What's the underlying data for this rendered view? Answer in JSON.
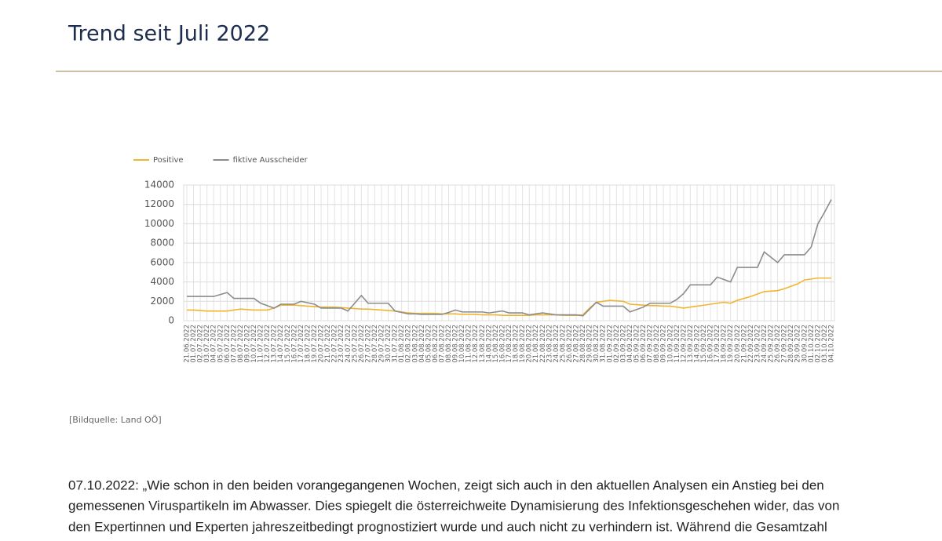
{
  "header": {
    "title": "Trend seit Juli 2022"
  },
  "chart_data": {
    "type": "line",
    "categories": [
      "21.06.2022",
      "01.07.2022",
      "02.07.2022",
      "03.07.2022",
      "04.07.2022",
      "05.07.2022",
      "06.07.2022",
      "07.07.2022",
      "08.07.2022",
      "09.07.2022",
      "10.07.2022",
      "11.07.2022",
      "12.07.2022",
      "13.07.2022",
      "14.07.2022",
      "15.07.2022",
      "16.07.2022",
      "17.07.2022",
      "18.07.2022",
      "19.07.2022",
      "20.07.2022",
      "21.07.2022",
      "22.07.2022",
      "23.07.2022",
      "24.07.2022",
      "25.07.2022",
      "26.07.2022",
      "27.07.2022",
      "28.07.2022",
      "29.07.2022",
      "30.07.2022",
      "31.07.2022",
      "01.08.2022",
      "02.08.2022",
      "03.08.2022",
      "04.08.2022",
      "05.08.2022",
      "06.08.2022",
      "07.08.2022",
      "08.08.2022",
      "09.08.2022",
      "10.08.2022",
      "11.08.2022",
      "12.08.2022",
      "13.08.2022",
      "14.08.2022",
      "15.08.2022",
      "16.08.2022",
      "17.08.2022",
      "18.08.2022",
      "19.08.2022",
      "20.08.2022",
      "21.08.2022",
      "22.08.2022",
      "23.08.2022",
      "24.08.2022",
      "25.08.2022",
      "26.08.2022",
      "27.08.2022",
      "28.08.2022",
      "29.08.2022",
      "30.08.2022",
      "31.08.2022",
      "01.09.2022",
      "02.09.2022",
      "03.09.2022",
      "04.09.2022",
      "05.09.2022",
      "06.09.2022",
      "07.09.2022",
      "08.09.2022",
      "09.09.2022",
      "10.09.2022",
      "11.09.2022",
      "12.09.2022",
      "13.09.2022",
      "14.09.2022",
      "15.09.2022",
      "16.09.2022",
      "17.09.2022",
      "18.09.2022",
      "19.09.2022",
      "20.09.2022",
      "21.09.2022",
      "22.09.2022",
      "23.09.2022",
      "24.09.2022",
      "25.09.2022",
      "26.09.2022",
      "27.09.2022",
      "28.09.2022",
      "29.09.2022",
      "30.09.2022",
      "01.10.2022",
      "02.10.2022",
      "03.10.2022",
      "04.10.2022"
    ],
    "series": [
      {
        "name": "Positive",
        "color": "#f2b530",
        "values": [
          1100,
          1100,
          1050,
          1000,
          1000,
          1000,
          1000,
          1100,
          1200,
          1150,
          1100,
          1100,
          1100,
          1300,
          1600,
          1600,
          1600,
          1550,
          1500,
          1450,
          1400,
          1400,
          1400,
          1350,
          1300,
          1250,
          1200,
          1200,
          1150,
          1100,
          1050,
          1000,
          900,
          800,
          750,
          750,
          750,
          750,
          700,
          700,
          700,
          650,
          650,
          650,
          600,
          600,
          600,
          550,
          550,
          550,
          550,
          550,
          600,
          600,
          600,
          600,
          550,
          550,
          550,
          600,
          1300,
          1900,
          2000,
          2100,
          2050,
          2000,
          1700,
          1650,
          1600,
          1550,
          1550,
          1500,
          1500,
          1400,
          1300,
          1400,
          1500,
          1600,
          1700,
          1800,
          1900,
          1800,
          2100,
          2300,
          2500,
          2750,
          3000,
          3050,
          3100,
          3300,
          3550,
          3800,
          4200,
          4300,
          4400,
          4400,
          4400
        ]
      },
      {
        "name": "fiktive Ausscheider",
        "color": "#8c8c8c",
        "values": [
          2500,
          2500,
          2500,
          2500,
          2500,
          2700,
          2900,
          2300,
          2300,
          2300,
          2300,
          1800,
          1550,
          1300,
          1700,
          1700,
          1700,
          2000,
          1850,
          1700,
          1300,
          1300,
          1300,
          1300,
          1000,
          1800,
          2600,
          1800,
          1800,
          1800,
          1800,
          1000,
          850,
          700,
          700,
          650,
          650,
          650,
          650,
          850,
          1100,
          900,
          900,
          900,
          900,
          800,
          900,
          1000,
          800,
          800,
          800,
          600,
          700,
          800,
          700,
          600,
          600,
          600,
          600,
          500,
          1200,
          1900,
          1500,
          1500,
          1500,
          1500,
          900,
          1150,
          1400,
          1800,
          1800,
          1800,
          1800,
          2200,
          2800,
          3700,
          3700,
          3700,
          3700,
          4500,
          4250,
          4000,
          5500,
          5500,
          5500,
          5500,
          7100,
          6550,
          6000,
          6800,
          6800,
          6800,
          6800,
          7600,
          10000,
          11200,
          12500
        ]
      }
    ],
    "ylim": [
      0,
      14000
    ],
    "yticks": [
      0,
      2000,
      4000,
      6000,
      8000,
      10000,
      12000,
      14000
    ],
    "grid": true,
    "legend": "top-left"
  },
  "caption": "[Bildquelle: Land OÖ]",
  "paragraph": [
    "07.10.2022: „Wie schon in den beiden vorangegangenen Wochen, zeigt sich auch in den aktuellen Analysen ein Anstieg bei den",
    "gemessenen Viruspartikeln im Abwasser. Dies spiegelt die österreichweite Dynamisierung des Infektionsgeschehen wider, das von",
    "den Expertinnen und Experten jahreszeitbedingt prognostiziert wurde und auch nicht zu verhindern ist. Während die Gesamtzahl"
  ]
}
